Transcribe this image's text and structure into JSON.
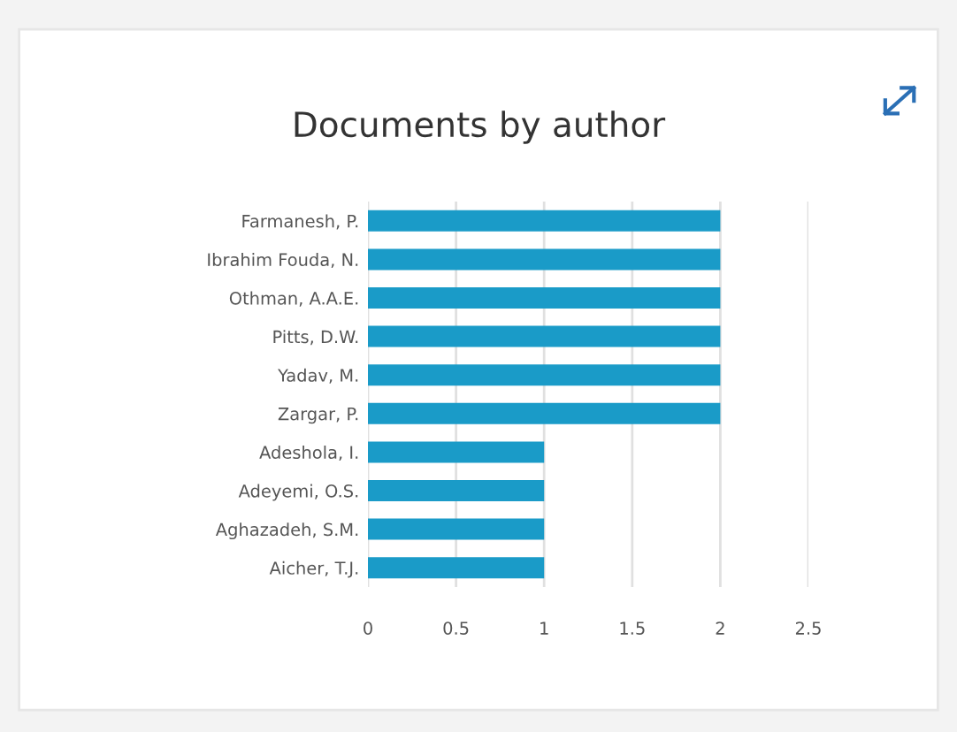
{
  "chart_data": {
    "type": "bar",
    "orientation": "horizontal",
    "title": "Documents by author",
    "categories": [
      "Farmanesh, P.",
      "Ibrahim Fouda, N.",
      "Othman, A.A.E.",
      "Pitts, D.W.",
      "Yadav, M.",
      "Zargar, P.",
      "Adeshola, I.",
      "Adeyemi, O.S.",
      "Aghazadeh, S.M.",
      "Aicher, T.J."
    ],
    "values": [
      2,
      2,
      2,
      2,
      2,
      2,
      1,
      1,
      1,
      1
    ],
    "color": "#1a9bc8",
    "xlim": [
      0,
      2.5
    ],
    "xticks": [
      0,
      0.5,
      1,
      1.5,
      2,
      2.5
    ],
    "grid": "x"
  }
}
